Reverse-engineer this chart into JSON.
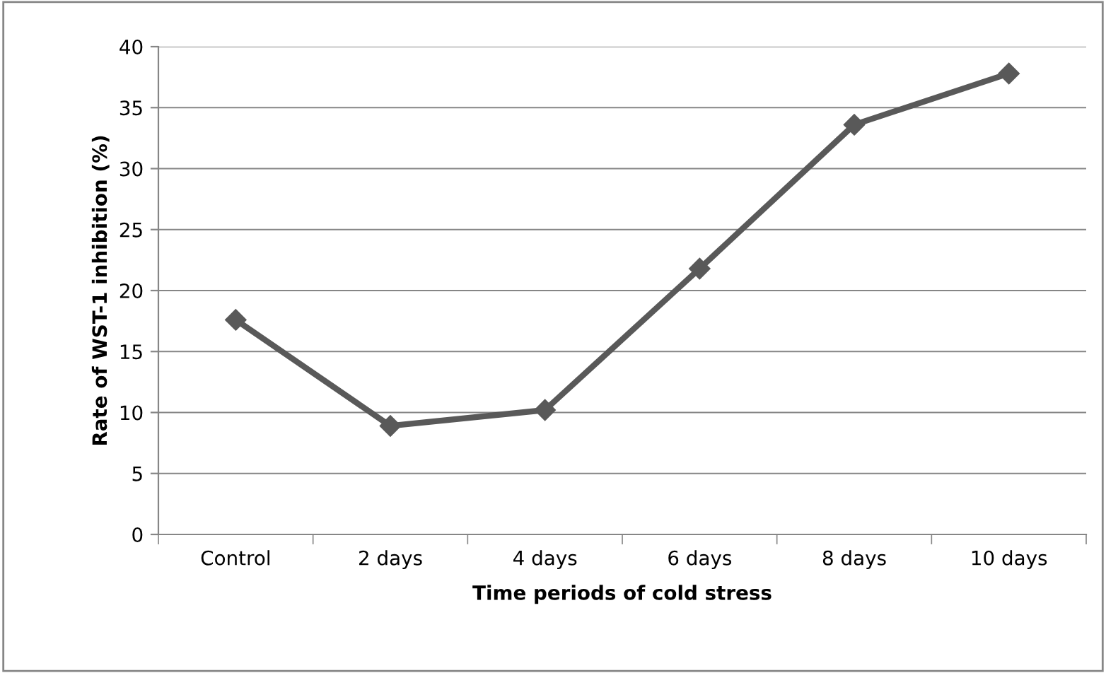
{
  "chart_data": {
    "type": "line",
    "xlabel": "Time periods of cold stress",
    "ylabel": "Rate of WST-1 inhibition (%)",
    "categories": [
      "Control",
      "2 days",
      "4 days",
      "6 days",
      "8 days",
      "10 days"
    ],
    "series": [
      {
        "color": "#595959",
        "values": [
          17.6,
          8.9,
          10.2,
          21.8,
          33.6,
          37.8
        ]
      }
    ],
    "ylim": [
      0,
      40
    ],
    "yticks": [
      0,
      5,
      10,
      15,
      20,
      25,
      30,
      35,
      40
    ],
    "grid": "y",
    "marker": "diamond",
    "line_style": "solid",
    "legend": false
  }
}
